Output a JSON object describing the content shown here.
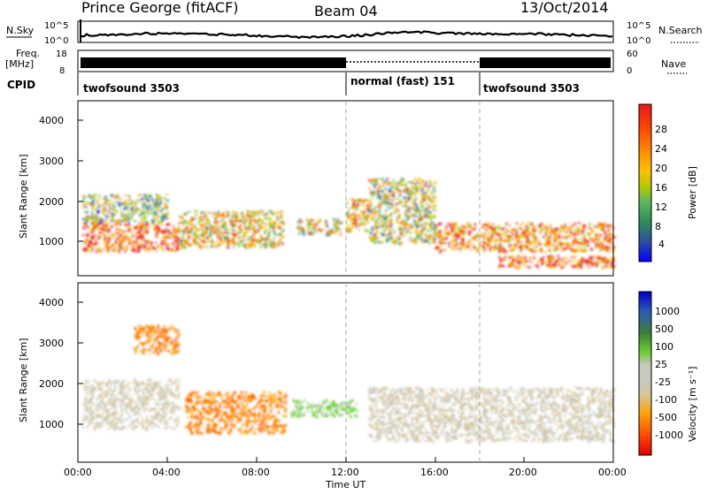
{
  "header": {
    "station": "Prince George (fitACF)",
    "beam": "Beam 04",
    "date": "13/Oct/2014"
  },
  "nsky_panel": {
    "left_label": "N.Sky",
    "right_label": "N.Search",
    "left_ticks": [
      "10^5",
      "10^0"
    ],
    "right_ticks": [
      "10^5",
      "10^0"
    ]
  },
  "freq_panel": {
    "left_label_1": "Freq.",
    "left_label_2": "[MHz]",
    "right_label": "Nave",
    "left_ticks": [
      "18",
      "8"
    ],
    "right_ticks": [
      "60",
      "0"
    ]
  },
  "cpid_panel": {
    "label": "CPID",
    "segments": [
      {
        "label": "twofsound 3503",
        "start_h": 0,
        "end_h": 12
      },
      {
        "label": "normal (fast) 151",
        "start_h": 12,
        "end_h": 18
      },
      {
        "label": "twofsound 3503",
        "start_h": 18,
        "end_h": 24
      }
    ]
  },
  "power_panel": {
    "ylabel": "Slant Range [km]",
    "yticks": [
      "4000",
      "3000",
      "2000",
      "1000"
    ],
    "colorbar_label": "Power [dB]",
    "colorbar_ticks": [
      "28",
      "24",
      "20",
      "16",
      "12",
      "8",
      "4"
    ]
  },
  "velocity_panel": {
    "ylabel": "Slant Range [km]",
    "yticks": [
      "4000",
      "3000",
      "2000",
      "1000"
    ],
    "colorbar_label": "Velocity [m s⁻¹]",
    "colorbar_ticks": [
      "1000",
      "500",
      "100",
      "25",
      "-25",
      "-100",
      "-500",
      "-1000"
    ]
  },
  "x_axis": {
    "label": "Time UT",
    "ticks": [
      "00:00",
      "04:00",
      "08:00",
      "12:00",
      "16:00",
      "20:00",
      "00:00"
    ]
  },
  "colors": {
    "power_scale": [
      "#e41a1c",
      "#ff4500",
      "#ff8c00",
      "#ffb000",
      "#d4c400",
      "#9acd32",
      "#4caf50",
      "#2e8b57",
      "#2f6e9a",
      "#1e3fb0",
      "#0000ff"
    ],
    "velocity_scale": [
      "#0000c8",
      "#2a5ab8",
      "#3c7c3c",
      "#6acd32",
      "#c8c8be",
      "#d8c59a",
      "#ffa000",
      "#ff6a00",
      "#ff3000",
      "#e00000"
    ]
  },
  "chart_data": {
    "type": "heatmap",
    "x_range_hours": [
      0,
      24
    ],
    "y_range_km": [
      180,
      4500
    ],
    "power_blobs_dB": [
      {
        "t0": 0.2,
        "t1": 4.5,
        "r0": 800,
        "r1": 1500,
        "value": 28
      },
      {
        "t0": 0.2,
        "t1": 4.0,
        "r0": 1500,
        "r1": 2200,
        "value": 12
      },
      {
        "t0": 4.5,
        "t1": 9.2,
        "r0": 900,
        "r1": 1800,
        "value": 18
      },
      {
        "t0": 9.8,
        "t1": 11.8,
        "r0": 1200,
        "r1": 1600,
        "value": 16
      },
      {
        "t0": 12.0,
        "t1": 13.0,
        "r0": 1300,
        "r1": 2100,
        "value": 22
      },
      {
        "t0": 13.0,
        "t1": 16.0,
        "r0": 1000,
        "r1": 2600,
        "value": 14
      },
      {
        "t0": 16.0,
        "t1": 24.0,
        "r0": 800,
        "r1": 1500,
        "value": 24
      },
      {
        "t0": 18.8,
        "t1": 24.0,
        "r0": 400,
        "r1": 700,
        "value": 28
      }
    ],
    "velocity_blobs_ms": [
      {
        "t0": 0.2,
        "t1": 4.5,
        "r0": 1000,
        "r1": 2200,
        "value": 0
      },
      {
        "t0": 2.5,
        "t1": 4.5,
        "r0": 2800,
        "r1": 3500,
        "value": -500
      },
      {
        "t0": 4.8,
        "t1": 9.3,
        "r0": 900,
        "r1": 1900,
        "value": -500
      },
      {
        "t0": 9.5,
        "t1": 12.5,
        "r0": 1300,
        "r1": 1700,
        "value": 300
      },
      {
        "t0": 13.0,
        "t1": 24.0,
        "r0": 700,
        "r1": 2000,
        "value": 0
      }
    ]
  }
}
